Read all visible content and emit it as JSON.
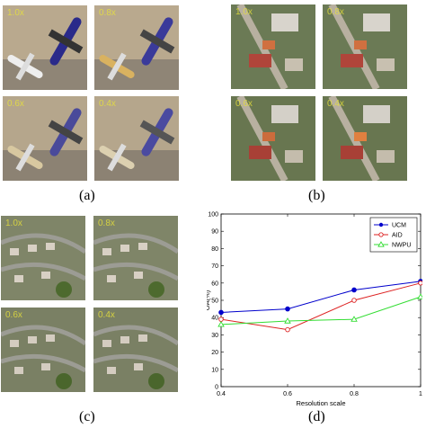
{
  "panels": {
    "a": {
      "caption": "(a)",
      "scales": [
        "1.0x",
        "0.8x",
        "0.6x",
        "0.4x"
      ]
    },
    "b": {
      "caption": "(b)",
      "scales": [
        "1.0x",
        "0.8x",
        "0.6x",
        "0.4x"
      ]
    },
    "c": {
      "caption": "(c)",
      "scales": [
        "1.0x",
        "0.8x",
        "0.6x",
        "0.4x"
      ]
    },
    "d": {
      "caption": "(d)"
    }
  },
  "chart_data": {
    "type": "line",
    "title": "",
    "xlabel": "Resolution scale",
    "ylabel": "OA(%)",
    "x": [
      0.4,
      0.6,
      0.8,
      1
    ],
    "xticks": [
      "0.4",
      "0.6",
      "0.8",
      "1"
    ],
    "yticks": [
      "0",
      "10",
      "20",
      "30",
      "40",
      "50",
      "60",
      "70",
      "80",
      "90",
      "100"
    ],
    "xlim": [
      0.4,
      1
    ],
    "ylim": [
      0,
      100
    ],
    "grid": false,
    "legend_position": "top-right",
    "series": [
      {
        "name": "UCM",
        "color": "#0000cc",
        "marker": "filled-circle",
        "values": [
          43,
          45,
          56,
          61
        ]
      },
      {
        "name": "AID",
        "color": "#dd2222",
        "marker": "open-circle",
        "values": [
          39,
          33,
          50,
          60
        ]
      },
      {
        "name": "NWPU",
        "color": "#33dd33",
        "marker": "triangle",
        "values": [
          36,
          38,
          39,
          52
        ]
      }
    ]
  }
}
